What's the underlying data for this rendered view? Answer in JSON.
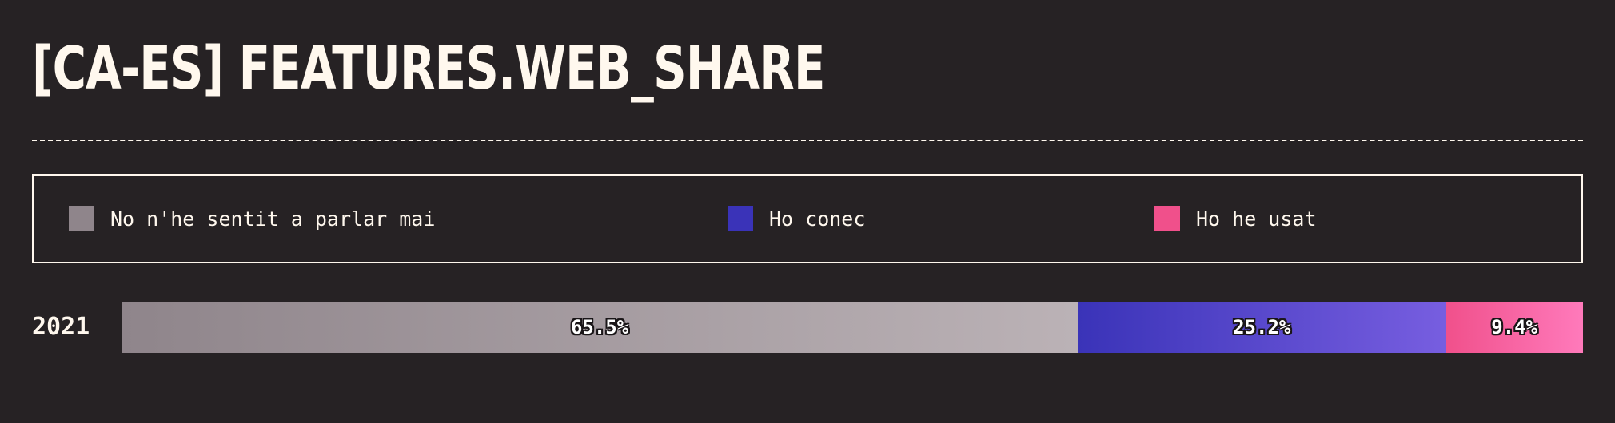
{
  "chart_data": {
    "type": "bar",
    "orientation": "horizontal",
    "stacked": true,
    "percent": true,
    "title": "[CA-ES] FEATURES.WEB_SHARE",
    "categories": [
      "2021"
    ],
    "series": [
      {
        "name": "No n'he sentit a parlar mai",
        "values": [
          65.5
        ],
        "labels": [
          "65.5%"
        ],
        "color": "#8f858b",
        "gradient": [
          "#8f858b",
          "#bbb2b6"
        ]
      },
      {
        "name": "Ho conec",
        "values": [
          25.2
        ],
        "labels": [
          "25.2%"
        ],
        "color": "#3a33b8",
        "gradient": [
          "#3a33b8",
          "#775ee0"
        ]
      },
      {
        "name": "Ho he usat",
        "values": [
          9.4
        ],
        "labels": [
          "9.4%"
        ],
        "color": "#f0508b",
        "gradient": [
          "#f0508b",
          "#ff7abb"
        ]
      }
    ],
    "legend": "top",
    "grid": false
  }
}
